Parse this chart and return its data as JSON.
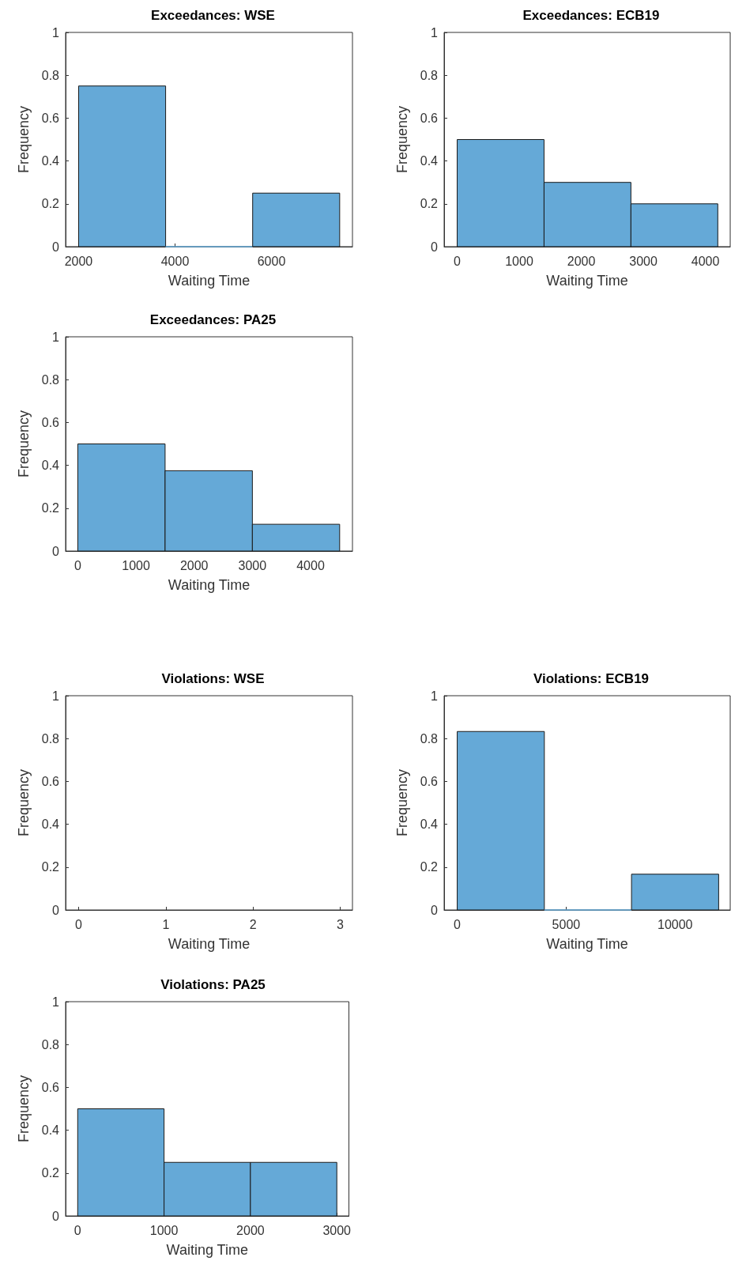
{
  "chart_data": [
    {
      "type": "histogram",
      "title": "Exceedances: WSE",
      "xlabel": "Waiting Time",
      "ylabel": "Frequency",
      "bins": [
        2000,
        3805,
        5610,
        7415
      ],
      "values": [
        0.75,
        0,
        0.25
      ],
      "color": "#65a9d7",
      "xlim": [
        1730,
        7680
      ],
      "xticks": [
        2000,
        4000,
        6000
      ],
      "ylim": [
        0,
        1
      ],
      "yticks": [
        0,
        0.2,
        0.4,
        0.6,
        0.8,
        1
      ]
    },
    {
      "type": "histogram",
      "title": "Exceedances: ECB19",
      "xlabel": "Waiting Time",
      "ylabel": "Frequency",
      "bins": [
        0,
        1400,
        2800,
        4200
      ],
      "values": [
        0.5,
        0.3,
        0.2
      ],
      "color": "#65a9d7",
      "xlim": [
        -210,
        4400
      ],
      "xticks": [
        0,
        1000,
        2000,
        3000,
        4000
      ],
      "ylim": [
        0,
        1
      ],
      "yticks": [
        0,
        0.2,
        0.4,
        0.6,
        0.8,
        1
      ]
    },
    {
      "type": "histogram",
      "title": "Exceedances: PA25",
      "xlabel": "Waiting Time",
      "ylabel": "Frequency",
      "bins": [
        0,
        1500,
        3000,
        4500
      ],
      "values": [
        0.5,
        0.375,
        0.125
      ],
      "color": "#65a9d7",
      "xlim": [
        -210,
        4720
      ],
      "xticks": [
        0,
        1000,
        2000,
        3000,
        4000
      ],
      "ylim": [
        0,
        1
      ],
      "yticks": [
        0,
        0.2,
        0.4,
        0.6,
        0.8,
        1
      ]
    },
    {
      "type": "histogram",
      "title": "Violations: WSE",
      "xlabel": "Waiting Time",
      "ylabel": "Frequency",
      "xlim": [
        -0.15,
        3.14
      ],
      "xticks": [
        0,
        1,
        2,
        3
      ],
      "ylim": [
        0,
        1
      ],
      "yticks": [
        0,
        0.2,
        0.4,
        0.6,
        0.8,
        1
      ]
    },
    {
      "type": "histogram",
      "title": "Violations: ECB19",
      "xlabel": "Waiting Time",
      "ylabel": "Frequency",
      "bins": [
        0,
        4000,
        8000,
        12000
      ],
      "values": [
        0.833,
        0,
        0.167
      ],
      "color": "#65a9d7",
      "xlim": [
        -600,
        12530
      ],
      "xticks": [
        0,
        5000,
        10000
      ],
      "ylim": [
        0,
        1
      ],
      "yticks": [
        0,
        0.2,
        0.4,
        0.6,
        0.8,
        1
      ]
    },
    {
      "type": "histogram",
      "title": "Violations: PA25",
      "xlabel": "Waiting Time",
      "ylabel": "Frequency",
      "bins": [
        0,
        1000,
        2000,
        3000
      ],
      "values": [
        0.5,
        0.25,
        0.25
      ],
      "color": "#65a9d7",
      "xlim": [
        -140,
        3140
      ],
      "xticks": [
        0,
        1000,
        2000,
        3000
      ],
      "ylim": [
        0,
        1
      ],
      "yticks": [
        0,
        0.2,
        0.4,
        0.6,
        0.8,
        1
      ]
    }
  ]
}
